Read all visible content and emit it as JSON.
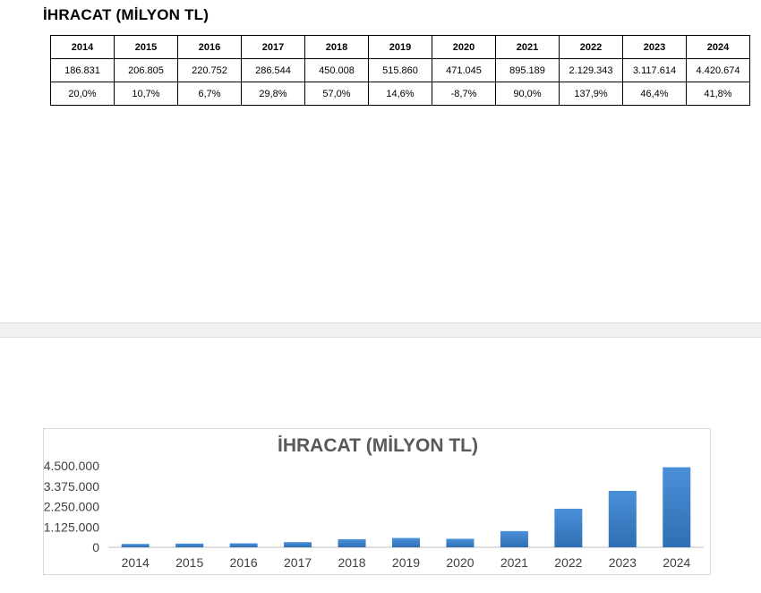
{
  "page": {
    "title": "İHRACAT (MİLYON TL)"
  },
  "table": {
    "years": [
      "2014",
      "2015",
      "2016",
      "2017",
      "2018",
      "2019",
      "2020",
      "2021",
      "2022",
      "2023",
      "2024"
    ],
    "values": [
      "186.831",
      "206.805",
      "220.752",
      "286.544",
      "450.008",
      "515.860",
      "471.045",
      "895.189",
      "2.129.343",
      "3.117.614",
      "4.420.674"
    ],
    "growth": [
      "20,0%",
      "10,7%",
      "6,7%",
      "29,8%",
      "57,0%",
      "14,6%",
      "-8,7%",
      "90,0%",
      "137,9%",
      "46,4%",
      "41,8%"
    ]
  },
  "chart_data": {
    "type": "bar",
    "title": "İHRACAT (MİLYON TL)",
    "xlabel": "",
    "ylabel": "",
    "categories": [
      "2014",
      "2015",
      "2016",
      "2017",
      "2018",
      "2019",
      "2020",
      "2021",
      "2022",
      "2023",
      "2024"
    ],
    "values": [
      186831,
      206805,
      220752,
      286544,
      450008,
      515860,
      471045,
      895189,
      2129343,
      3117614,
      4420674
    ],
    "ylim": [
      0,
      4500000
    ],
    "yticks": [
      0,
      1125000,
      2250000,
      3375000,
      4500000
    ],
    "ytick_labels": [
      "0",
      "1.125.000",
      "2.250.000",
      "3.375.000",
      "4.500.000"
    ],
    "grid": false,
    "legend": "none",
    "bar_color": "#4a90d9",
    "bar_color_dark": "#2f6fb3"
  }
}
